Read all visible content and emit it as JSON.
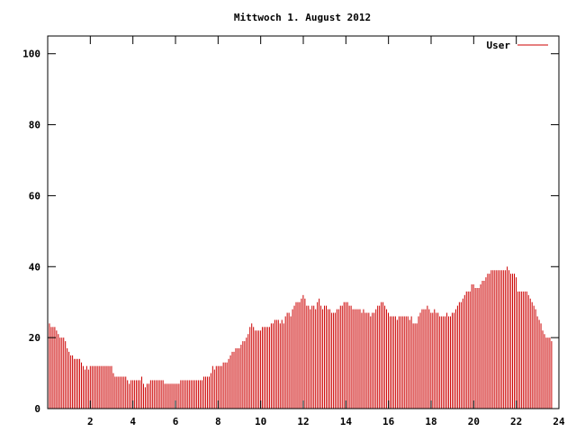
{
  "chart_data": {
    "type": "bar",
    "title": "Mittwoch 1. August 2012",
    "xlabel": "",
    "ylabel": "",
    "xlim": [
      0,
      24
    ],
    "ylim": [
      0,
      105
    ],
    "yticks": [
      0,
      20,
      40,
      60,
      80,
      100
    ],
    "xticks": [
      2,
      4,
      6,
      8,
      10,
      12,
      14,
      16,
      18,
      20,
      22,
      24
    ],
    "grid": false,
    "legend_position": "top-right",
    "series": [
      {
        "name": "User",
        "color": "#cc0000",
        "x_start": 0.0,
        "x_step": 0.0833,
        "values": [
          28,
          24,
          23,
          23,
          23,
          22,
          21,
          20,
          20,
          20,
          19,
          17,
          16,
          15,
          15,
          14,
          14,
          14,
          14,
          13,
          12,
          11,
          12,
          11,
          12,
          12,
          12,
          12,
          12,
          12,
          12,
          12,
          12,
          12,
          12,
          12,
          12,
          10,
          9,
          9,
          9,
          9,
          9,
          9,
          9,
          8,
          7,
          8,
          8,
          8,
          8,
          8,
          8,
          9,
          7,
          6,
          7,
          7,
          8,
          8,
          8,
          8,
          8,
          8,
          8,
          8,
          7,
          7,
          7,
          7,
          7,
          7,
          7,
          7,
          7,
          8,
          8,
          8,
          8,
          8,
          8,
          8,
          8,
          8,
          8,
          8,
          8,
          8,
          9,
          9,
          9,
          9,
          10,
          12,
          11,
          12,
          12,
          12,
          12,
          13,
          13,
          13,
          14,
          15,
          16,
          16,
          17,
          17,
          17,
          18,
          19,
          19,
          20,
          21,
          23,
          24,
          23,
          22,
          22,
          22,
          22,
          23,
          23,
          23,
          23,
          23,
          24,
          24,
          25,
          25,
          25,
          24,
          25,
          24,
          26,
          27,
          27,
          26,
          28,
          29,
          30,
          30,
          30,
          31,
          32,
          31,
          29,
          29,
          28,
          29,
          29,
          28,
          30,
          31,
          29,
          28,
          29,
          29,
          28,
          28,
          27,
          27,
          27,
          28,
          28,
          29,
          29,
          30,
          30,
          30,
          29,
          29,
          28,
          28,
          28,
          28,
          28,
          27,
          28,
          27,
          27,
          27,
          26,
          27,
          27,
          28,
          29,
          29,
          30,
          30,
          29,
          28,
          27,
          26,
          26,
          26,
          26,
          25,
          26,
          26,
          26,
          26,
          26,
          26,
          25,
          26,
          24,
          24,
          24,
          26,
          27,
          28,
          28,
          28,
          29,
          28,
          27,
          27,
          28,
          27,
          27,
          26,
          26,
          26,
          26,
          27,
          26,
          26,
          27,
          27,
          28,
          29,
          30,
          30,
          31,
          32,
          33,
          33,
          33,
          35,
          35,
          34,
          34,
          34,
          35,
          36,
          36,
          37,
          38,
          38,
          39,
          39,
          39,
          39,
          39,
          39,
          39,
          39,
          39,
          40,
          39,
          38,
          38,
          38,
          37,
          33,
          33,
          33,
          33,
          33,
          33,
          32,
          31,
          30,
          29,
          28,
          26,
          25,
          24,
          22,
          21,
          20,
          20,
          20,
          19
        ]
      }
    ]
  }
}
